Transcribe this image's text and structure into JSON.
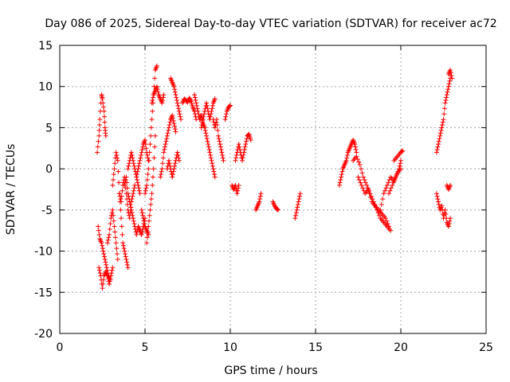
{
  "chart_data": {
    "type": "scatter",
    "title": "Day 086 of 2025, Sidereal Day-to-day VTEC variation (SDTVAR) for receiver ac72",
    "xlabel": "GPS time / hours",
    "ylabel": "SDTVAR / TECUs",
    "xlim": [
      0,
      25
    ],
    "ylim": [
      -20,
      15
    ],
    "xticks": [
      0,
      5,
      10,
      15,
      20,
      25
    ],
    "yticks": [
      -20,
      -15,
      -10,
      -5,
      0,
      5,
      10,
      15
    ],
    "grid": true,
    "marker": "+",
    "color": "#ff0000",
    "series": [
      {
        "name": "SDTVAR",
        "segments": [
          {
            "x": [
              2.2,
              2.3,
              2.35,
              2.45,
              2.5,
              2.6,
              2.65,
              2.7
            ],
            "y": [
              2,
              4,
              6,
              9,
              8.5,
              7,
              5,
              4
            ]
          },
          {
            "x": [
              2.25,
              2.35,
              2.45,
              2.55,
              2.65,
              2.75,
              2.85,
              2.95
            ],
            "y": [
              -7,
              -8.5,
              -9,
              -10,
              -11,
              -12,
              -13,
              -13.5
            ]
          },
          {
            "x": [
              2.3,
              2.4,
              2.5,
              2.6,
              2.7,
              2.8,
              2.9,
              3.0,
              3.1
            ],
            "y": [
              -12,
              -13,
              -14.5,
              -13,
              -12.5,
              -13,
              -14,
              -13,
              -12
            ]
          },
          {
            "x": [
              2.8,
              2.9,
              3.0,
              3.1,
              3.2,
              3.3,
              3.4
            ],
            "y": [
              -9,
              -8,
              -6,
              -5,
              -7,
              -9,
              -11
            ]
          },
          {
            "x": [
              3.1,
              3.2,
              3.3,
              3.4,
              3.5,
              3.6,
              3.7,
              3.8,
              3.9,
              4.0
            ],
            "y": [
              -2,
              0,
              2,
              1,
              -3,
              -6,
              -9,
              -10,
              -11,
              -12
            ]
          },
          {
            "x": [
              3.5,
              3.6,
              3.7,
              3.8,
              3.9,
              4.0,
              4.1,
              4.2,
              4.3,
              4.4
            ],
            "y": [
              -3,
              -4,
              -2,
              -1,
              -3,
              -5,
              -6,
              -4,
              -3,
              -2
            ]
          },
          {
            "x": [
              3.8,
              3.9,
              4.0,
              4.1,
              4.2,
              4.3,
              4.4,
              4.5,
              4.6,
              4.7,
              4.8,
              4.9,
              5.0
            ],
            "y": [
              -2,
              -1,
              -3,
              -4,
              -5,
              -6,
              -7,
              -8,
              -7,
              -7.5,
              -8,
              -7,
              -6
            ]
          },
          {
            "x": [
              4.0,
              4.1,
              4.2,
              4.3,
              4.4,
              4.5,
              4.6,
              4.7
            ],
            "y": [
              0,
              1,
              2,
              1,
              0,
              -1,
              -2,
              -3
            ]
          },
          {
            "x": [
              4.5,
              4.6,
              4.7,
              4.8,
              4.9,
              5.0,
              5.1,
              5.2
            ],
            "y": [
              -1,
              0,
              1,
              2,
              3,
              3.5,
              2,
              1
            ]
          },
          {
            "x": [
              4.8,
              4.9,
              5.0,
              5.1,
              5.2
            ],
            "y": [
              -5,
              -6,
              -7,
              -7.5,
              -8
            ]
          },
          {
            "x": [
              5.0,
              5.1,
              5.2,
              5.3,
              5.4,
              5.5,
              5.6,
              5.7
            ],
            "y": [
              -3,
              -2,
              0,
              3,
              6,
              9,
              12,
              12.5
            ]
          },
          {
            "x": [
              5.1,
              5.2,
              5.3,
              5.4,
              5.5,
              5.6
            ],
            "y": [
              -9,
              -7,
              -5,
              -3,
              0,
              4
            ]
          },
          {
            "x": [
              5.4,
              5.5,
              5.6,
              5.7,
              5.8,
              5.9,
              6.0,
              6.1
            ],
            "y": [
              8,
              9,
              9.5,
              10,
              9,
              8.5,
              8,
              9
            ]
          },
          {
            "x": [
              5.9,
              6.0,
              6.1,
              6.2,
              6.3,
              6.4,
              6.5,
              6.6,
              6.7,
              6.8
            ],
            "y": [
              -1,
              0,
              2,
              3,
              4,
              5,
              6,
              6.5,
              5.5,
              4.5
            ]
          },
          {
            "x": [
              6.3,
              6.4,
              6.5,
              6.6,
              6.7,
              6.8,
              6.9,
              7.0
            ],
            "y": [
              0,
              1,
              0,
              -1,
              0,
              1,
              2,
              1
            ]
          },
          {
            "x": [
              6.5,
              6.6,
              6.7,
              6.8,
              6.9,
              7.0,
              7.1
            ],
            "y": [
              11,
              10.5,
              10,
              9,
              8,
              7,
              6
            ]
          },
          {
            "x": [
              7.2,
              7.3,
              7.4,
              7.5,
              7.6,
              7.7,
              7.8,
              7.9,
              8.0
            ],
            "y": [
              8,
              8.5,
              8.3,
              8.1,
              8.6,
              8.2,
              7.5,
              7,
              6
            ]
          },
          {
            "x": [
              7.9,
              8.0,
              8.1,
              8.2,
              8.3,
              8.4,
              8.5,
              8.6,
              8.7,
              8.8,
              8.9,
              9.0,
              9.1
            ],
            "y": [
              9,
              8,
              7,
              6,
              6.5,
              5.5,
              5,
              4,
              3,
              2,
              1,
              0,
              -1
            ]
          },
          {
            "x": [
              8.3,
              8.4,
              8.5,
              8.6,
              8.7,
              8.8,
              8.9,
              9.0,
              9.1
            ],
            "y": [
              5,
              6,
              7,
              8,
              7,
              6,
              7,
              8,
              8.5
            ]
          },
          {
            "x": [
              9.0,
              9.1,
              9.2,
              9.3,
              9.4,
              9.5,
              9.6
            ],
            "y": [
              6,
              5,
              6,
              4,
              3,
              2,
              1
            ]
          },
          {
            "x": [
              9.7,
              9.8,
              9.9,
              10.0
            ],
            "y": [
              6,
              7,
              7.5,
              7.7
            ]
          },
          {
            "x": [
              10.1,
              10.2,
              10.3,
              10.4,
              10.5
            ],
            "y": [
              -2,
              -2.5,
              -2,
              -3,
              -2
            ]
          },
          {
            "x": [
              10.3,
              10.4,
              10.5,
              10.6,
              10.7,
              10.8,
              10.9,
              11.0,
              11.1,
              11.2
            ],
            "y": [
              1,
              2,
              3,
              2,
              1,
              2,
              3,
              4,
              4.2,
              3.5
            ]
          },
          {
            "x": [
              11.5,
              11.6,
              11.7,
              11.8
            ],
            "y": [
              -5,
              -4.5,
              -4,
              -3
            ]
          },
          {
            "x": [
              12.5,
              12.6,
              12.7,
              12.8
            ],
            "y": [
              -4,
              -4.5,
              -4.8,
              -5
            ]
          },
          {
            "x": [
              13.8,
              13.9,
              14.0,
              14.1
            ],
            "y": [
              -6,
              -5,
              -4,
              -3
            ]
          },
          {
            "x": [
              16.4,
              16.5,
              16.6,
              16.7,
              16.8,
              16.9,
              17.0,
              17.1,
              17.2,
              17.3,
              17.4
            ],
            "y": [
              -2,
              -1,
              0,
              0.5,
              1,
              2,
              2.5,
              3,
              3.5,
              3,
              2
            ]
          },
          {
            "x": [
              17.2,
              17.4,
              17.6,
              17.8,
              18.0,
              18.2,
              18.4,
              18.6,
              18.8,
              19.0,
              19.2,
              19.4
            ],
            "y": [
              1,
              1.5,
              0.5,
              -1,
              -2,
              -3,
              -4,
              -5,
              -6,
              -6.5,
              -7,
              -7.5
            ]
          },
          {
            "x": [
              17.5,
              17.7,
              17.9,
              18.1,
              18.3,
              18.5,
              18.7,
              18.9,
              19.1,
              19.3
            ],
            "y": [
              -1,
              -2,
              -3,
              -2.5,
              -4,
              -4.5,
              -5,
              -5.5,
              -6,
              -7
            ]
          },
          {
            "x": [
              18.8,
              19.0,
              19.2,
              19.4,
              19.6,
              19.8,
              20.0
            ],
            "y": [
              -5,
              -3,
              -2,
              -1,
              -1.5,
              -0.5,
              0
            ]
          },
          {
            "x": [
              19.3,
              19.5,
              19.7,
              19.9,
              20.0
            ],
            "y": [
              -3,
              -2,
              -1,
              0,
              1
            ]
          },
          {
            "x": [
              19.6,
              19.8,
              20.0,
              20.1
            ],
            "y": [
              1,
              1.5,
              2,
              2.2
            ]
          },
          {
            "x": [
              22.1,
              22.2,
              22.3,
              22.4,
              22.5,
              22.6,
              22.7,
              22.8,
              22.9
            ],
            "y": [
              2,
              3,
              4,
              5,
              6,
              8,
              9,
              10,
              11
            ]
          },
          {
            "x": [
              22.8,
              22.9,
              23.0
            ],
            "y": [
              11.5,
              12,
              11
            ]
          },
          {
            "x": [
              22.1,
              22.2,
              22.3,
              22.4,
              22.5,
              22.6,
              22.7,
              22.8,
              22.9
            ],
            "y": [
              -3,
              -4,
              -5,
              -4.5,
              -6,
              -5,
              -6.5,
              -7,
              -6
            ]
          },
          {
            "x": [
              22.7,
              22.8,
              22.9
            ],
            "y": [
              -2,
              -2.5,
              -2
            ]
          }
        ]
      }
    ]
  }
}
